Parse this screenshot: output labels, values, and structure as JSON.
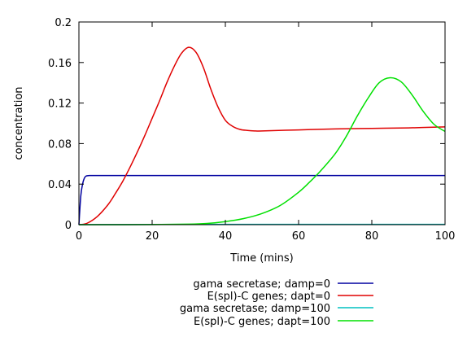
{
  "chart_data": {
    "type": "line",
    "xlabel": "Time (mins)",
    "ylabel": "concentration",
    "xlim": [
      0,
      100
    ],
    "ylim": [
      0,
      0.2
    ],
    "x_ticks": [
      0,
      20,
      40,
      60,
      80,
      100
    ],
    "y_ticks": [
      0,
      0.04,
      0.08,
      0.12,
      0.16,
      0.2
    ],
    "x_tick_labels": [
      "0",
      "20",
      "40",
      "60",
      "80",
      "100"
    ],
    "y_tick_labels": [
      "0",
      "0.04",
      "0.08",
      "0.12",
      "0.16",
      "0.2"
    ],
    "grid": false,
    "legend_position": "bottom",
    "series": [
      {
        "name": "gama secretase; damp=0",
        "color": "#0000a0",
        "x": [
          0,
          0.5,
          1,
          1.5,
          2,
          3,
          5,
          10,
          20,
          40,
          60,
          80,
          100
        ],
        "y": [
          0,
          0.028,
          0.04,
          0.046,
          0.048,
          0.0485,
          0.0485,
          0.0485,
          0.0485,
          0.0485,
          0.0485,
          0.0485,
          0.0485
        ]
      },
      {
        "name": "E(spl)-C genes; dapt=0",
        "color": "#e00000",
        "x": [
          0,
          2,
          5,
          8,
          10,
          12,
          14,
          16,
          18,
          20,
          22,
          24,
          26,
          28,
          30,
          32,
          34,
          36,
          38,
          40,
          42,
          44,
          46,
          48,
          50,
          60,
          70,
          80,
          90,
          100
        ],
        "y": [
          0,
          0.001,
          0.008,
          0.02,
          0.031,
          0.043,
          0.057,
          0.072,
          0.088,
          0.105,
          0.122,
          0.14,
          0.156,
          0.169,
          0.175,
          0.17,
          0.155,
          0.134,
          0.116,
          0.103,
          0.097,
          0.094,
          0.093,
          0.0925,
          0.0925,
          0.0935,
          0.0945,
          0.095,
          0.0955,
          0.0965
        ]
      },
      {
        "name": "gama secretase; damp=100",
        "color": "#00c0c0",
        "x": [
          0,
          20,
          40,
          60,
          80,
          100
        ],
        "y": [
          0,
          0.0002,
          0.0003,
          0.0003,
          0.0003,
          0.0003
        ]
      },
      {
        "name": "E(spl)-C genes; dapt=100",
        "color": "#00e000",
        "x": [
          0,
          20,
          30,
          35,
          40,
          45,
          50,
          55,
          60,
          63,
          66,
          70,
          73,
          76,
          79,
          82,
          85,
          88,
          91,
          94,
          97,
          100
        ],
        "y": [
          0,
          0.0001,
          0.0005,
          0.0012,
          0.003,
          0.006,
          0.011,
          0.019,
          0.032,
          0.042,
          0.053,
          0.07,
          0.087,
          0.107,
          0.125,
          0.14,
          0.145,
          0.141,
          0.128,
          0.112,
          0.099,
          0.092
        ]
      }
    ]
  }
}
